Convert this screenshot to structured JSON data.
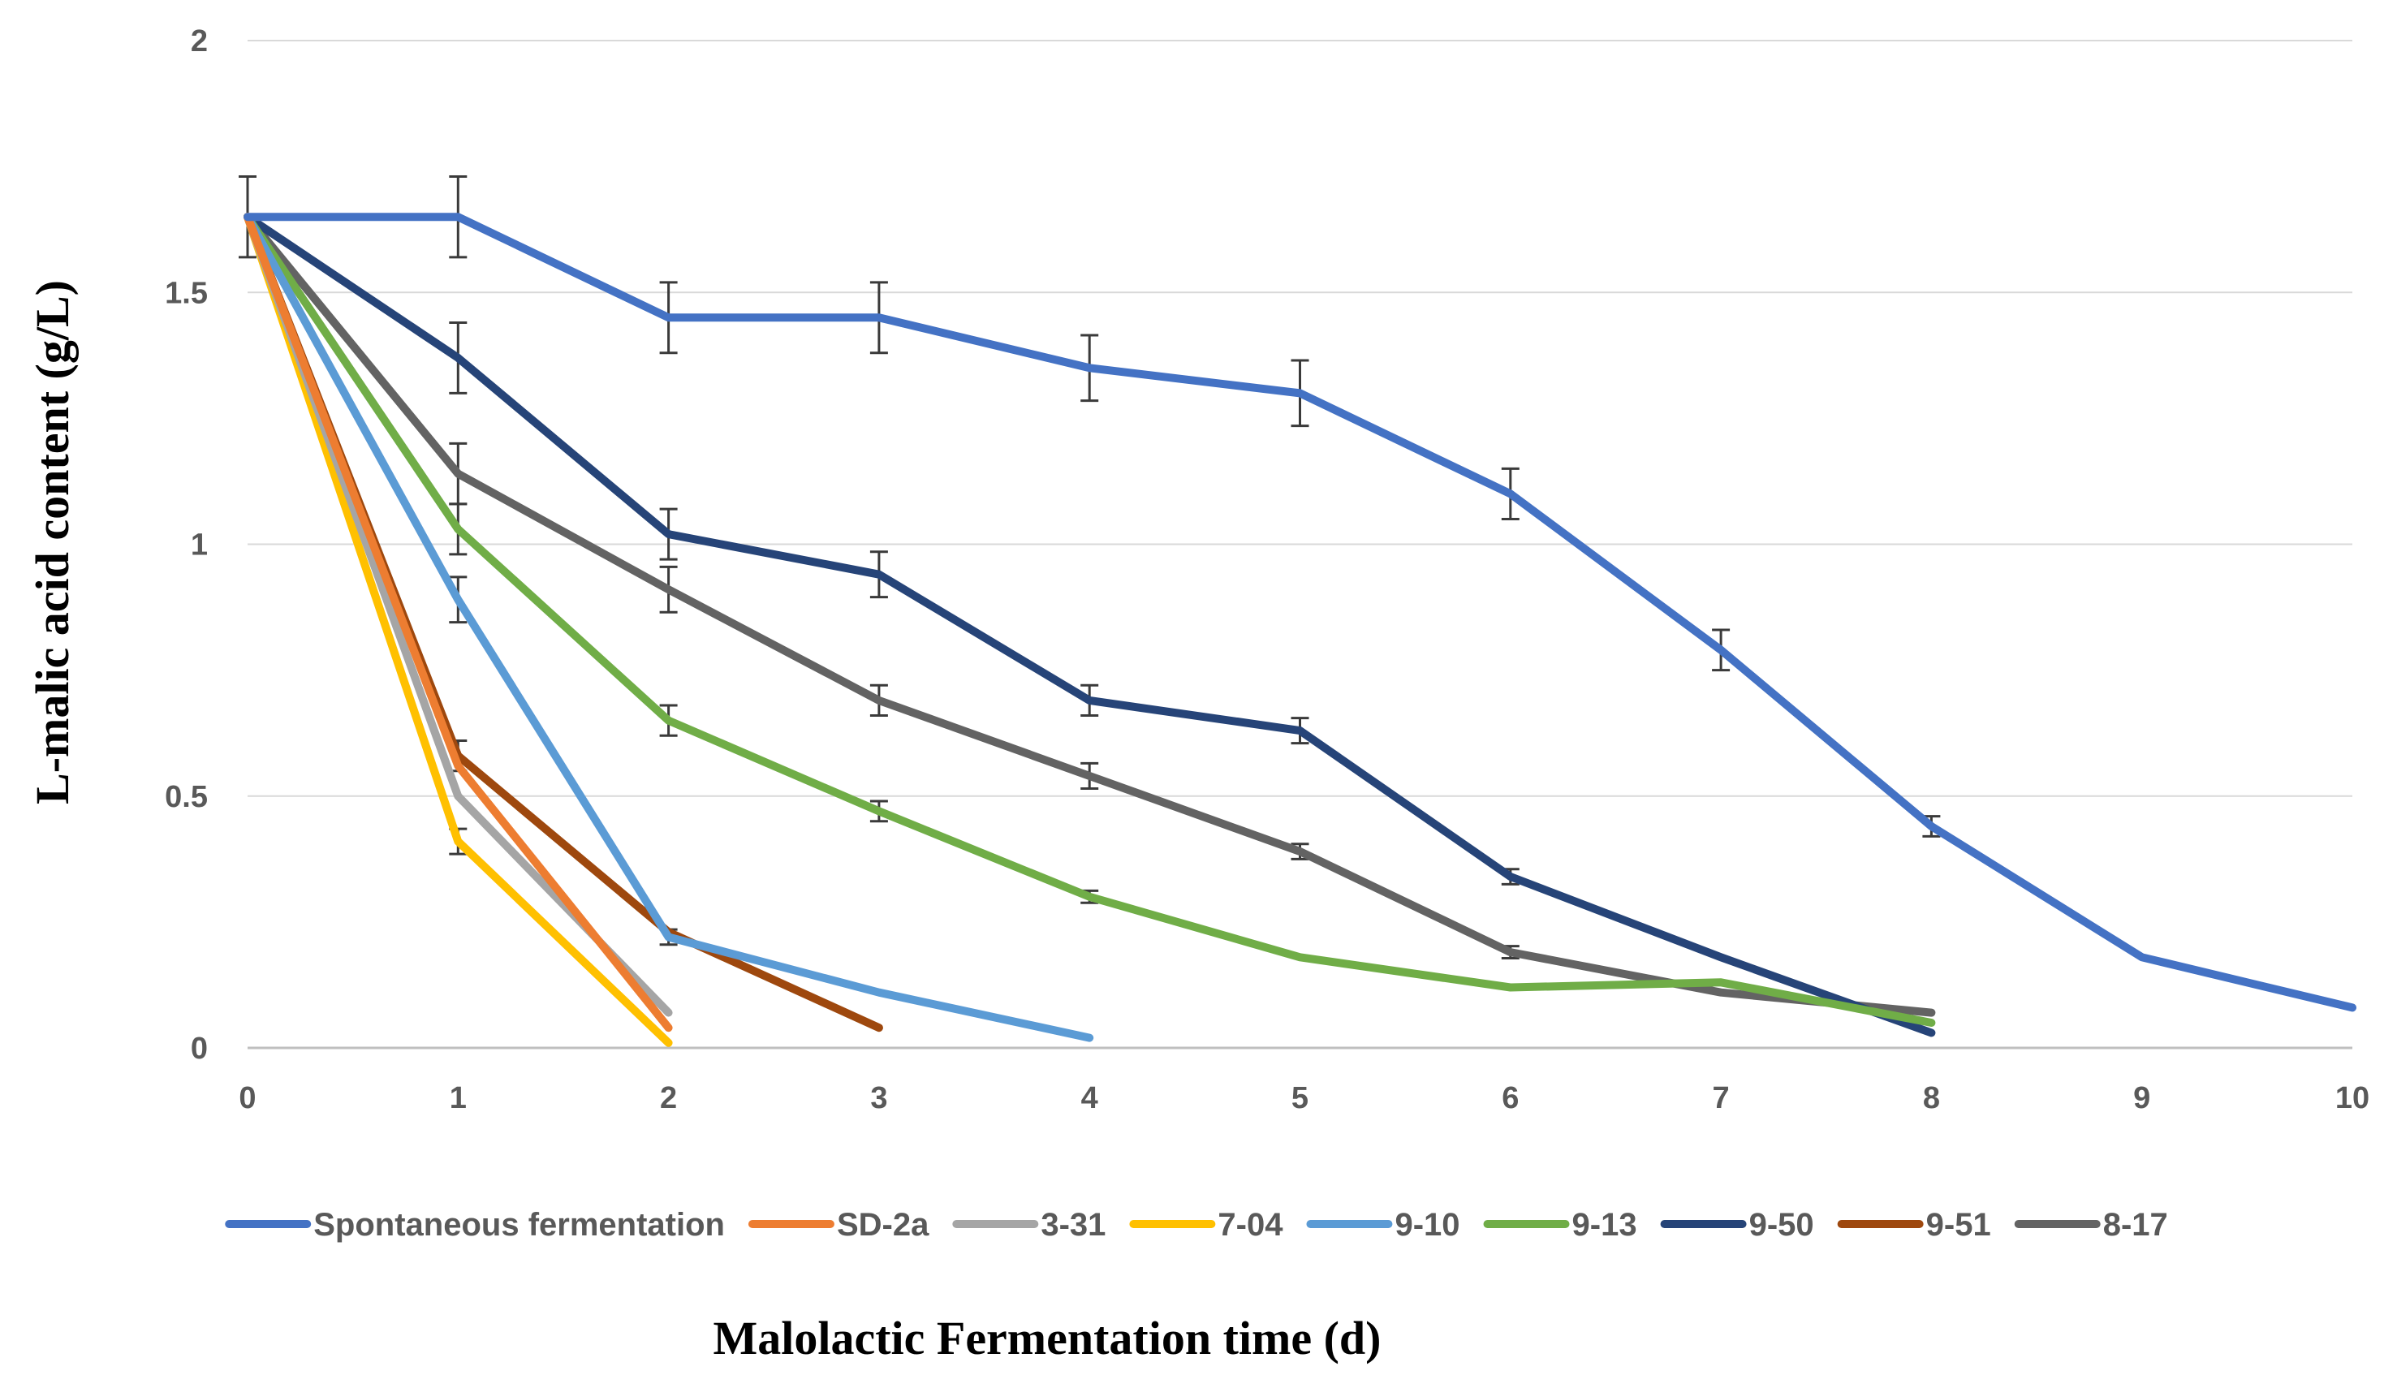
{
  "chart_data": {
    "type": "line",
    "title": "",
    "xlabel": "Malolactic Fermentation time (d)",
    "ylabel": "L-malic acid content  (g/L)",
    "xlim": [
      0,
      10
    ],
    "ylim": [
      0,
      2
    ],
    "x_ticks": [
      0,
      1,
      2,
      3,
      4,
      5,
      6,
      7,
      8,
      9,
      10
    ],
    "y_ticks": [
      0,
      0.5,
      1,
      1.5,
      2
    ],
    "y_tick_labels": [
      "0",
      "0.5",
      "1",
      "1.5",
      "2"
    ],
    "grid": true,
    "legend_position": "bottom",
    "series": [
      {
        "name": "Spontaneous fermentation",
        "color": "#4472C4",
        "x": [
          0,
          1,
          2,
          3,
          4,
          5,
          6,
          7,
          8,
          9,
          10
        ],
        "y": [
          1.65,
          1.65,
          1.45,
          1.45,
          1.35,
          1.3,
          1.1,
          0.79,
          0.44,
          0.18,
          0.08
        ],
        "err": [
          0.08,
          0.08,
          0.07,
          0.07,
          0.065,
          0.065,
          0.05,
          0.04,
          0.02,
          0.0,
          0.0
        ]
      },
      {
        "name": "SD-2a",
        "color": "#ED7D31",
        "x": [
          0,
          1,
          2
        ],
        "y": [
          1.65,
          0.56,
          0.04
        ],
        "err": [
          0.0,
          0.0,
          0.0
        ]
      },
      {
        "name": "3-31",
        "color": "#A5A5A5",
        "x": [
          0,
          1,
          2
        ],
        "y": [
          1.65,
          0.5,
          0.07
        ],
        "err": [
          0.0,
          0.0,
          0.0
        ]
      },
      {
        "name": "7-04",
        "color": "#FFC000",
        "x": [
          0,
          1,
          2
        ],
        "y": [
          1.65,
          0.41,
          0.01
        ],
        "err": [
          0.0,
          0.025,
          0.0
        ]
      },
      {
        "name": "9-10",
        "color": "#5B9BD5",
        "x": [
          0,
          1,
          2,
          3,
          4
        ],
        "y": [
          1.65,
          0.89,
          0.22,
          0.11,
          0.02
        ],
        "err": [
          0.0,
          0.045,
          0.015,
          0.0,
          0.0
        ]
      },
      {
        "name": "9-13",
        "color": "#70AD47",
        "x": [
          0,
          1,
          2,
          3,
          4,
          5,
          6,
          7,
          8
        ],
        "y": [
          1.65,
          1.03,
          0.65,
          0.47,
          0.3,
          0.18,
          0.12,
          0.13,
          0.05
        ],
        "err": [
          0.0,
          0.05,
          0.03,
          0.02,
          0.012,
          0.0,
          0.0,
          0.0,
          0.0
        ]
      },
      {
        "name": "9-50",
        "color": "#264478",
        "x": [
          0,
          1,
          2,
          3,
          4,
          5,
          6,
          7,
          8
        ],
        "y": [
          1.65,
          1.37,
          1.02,
          0.94,
          0.69,
          0.63,
          0.34,
          0.18,
          0.03
        ],
        "err": [
          0.0,
          0.07,
          0.05,
          0.045,
          0.03,
          0.025,
          0.015,
          0.0,
          0.0
        ]
      },
      {
        "name": "9-51",
        "color": "#9E480E",
        "x": [
          0,
          1,
          2,
          3
        ],
        "y": [
          1.65,
          0.58,
          0.23,
          0.04
        ],
        "err": [
          0.0,
          0.03,
          0.0,
          0.0
        ]
      },
      {
        "name": "8-17",
        "color": "#636363",
        "x": [
          0,
          1,
          2,
          3,
          4,
          5,
          6,
          7,
          8
        ],
        "y": [
          1.65,
          1.14,
          0.91,
          0.69,
          0.54,
          0.39,
          0.19,
          0.11,
          0.07
        ],
        "err": [
          0.0,
          0.06,
          0.045,
          0.03,
          0.025,
          0.015,
          0.012,
          0.0,
          0.0
        ]
      }
    ]
  }
}
